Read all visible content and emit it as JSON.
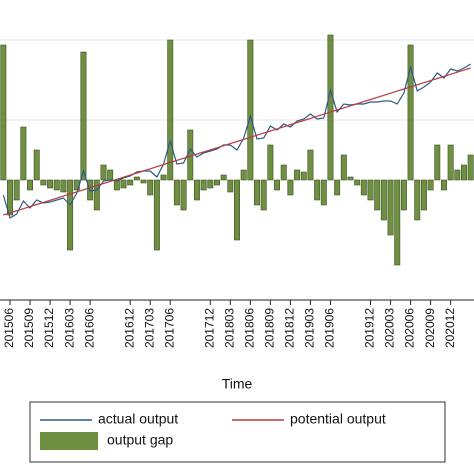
{
  "chart_data": {
    "type": "bar-line",
    "x_label": "Time",
    "categories": [
      null,
      "201506",
      null,
      null,
      "201509",
      null,
      null,
      "201512",
      null,
      null,
      "201603",
      null,
      null,
      "201606",
      null,
      null,
      null,
      null,
      null,
      "201612",
      null,
      null,
      "201703",
      null,
      null,
      "201706",
      null,
      null,
      null,
      null,
      null,
      "201712",
      null,
      null,
      "201803",
      null,
      null,
      "201806",
      null,
      null,
      "201809",
      null,
      null,
      "201812",
      null,
      null,
      "201903",
      null,
      null,
      "201906",
      null,
      null,
      null,
      null,
      null,
      "201912",
      null,
      null,
      "202003",
      null,
      null,
      "202006",
      null,
      null,
      "202009",
      null,
      null,
      "202012",
      null,
      null,
      null
    ],
    "series": [
      {
        "name": "actual output",
        "kind": "line",
        "color": "#2b5a84",
        "values": [
          -1.5,
          -3.8,
          -3.4,
          -2.1,
          -2.8,
          -2.0,
          -2.3,
          -2.2,
          -2.0,
          -1.8,
          -2.5,
          -1.3,
          0.9,
          -1.1,
          -1.0,
          -0.1,
          0.0,
          -0.1,
          0.2,
          0.4,
          0.8,
          0.9,
          0.9,
          0.3,
          1.6,
          3.9,
          1.6,
          1.7,
          3.1,
          2.3,
          2.7,
          2.9,
          3.1,
          3.5,
          3.5,
          3.0,
          4.2,
          6.4,
          4.1,
          4.2,
          5.4,
          5.0,
          5.6,
          5.3,
          5.9,
          6.1,
          6.6,
          6.1,
          6.2,
          9.0,
          6.8,
          7.6,
          7.5,
          7.6,
          7.6,
          7.8,
          7.8,
          7.9,
          7.9,
          7.6,
          8.7,
          11.3,
          8.9,
          9.3,
          9.8,
          10.7,
          10.2,
          11.1,
          10.9,
          11.2,
          11.6
        ]
      },
      {
        "name": "potential output",
        "kind": "line",
        "color": "#b83a3a",
        "values": [
          -3.5,
          -3.29,
          -3.08,
          -2.87,
          -2.66,
          -2.45,
          -2.24,
          -2.03,
          -1.82,
          -1.61,
          -1.4,
          -1.19,
          -0.98,
          -0.77,
          -0.56,
          -0.35,
          -0.14,
          0.07,
          0.28,
          0.49,
          0.7,
          0.91,
          1.12,
          1.33,
          1.54,
          1.75,
          1.96,
          2.17,
          2.38,
          2.59,
          2.8,
          3.01,
          3.22,
          3.43,
          3.64,
          3.85,
          4.06,
          4.27,
          4.48,
          4.69,
          4.9,
          5.11,
          5.32,
          5.53,
          5.74,
          5.95,
          6.16,
          6.37,
          6.58,
          6.79,
          7.0,
          7.21,
          7.42,
          7.63,
          7.84,
          8.05,
          8.26,
          8.47,
          8.68,
          8.89,
          9.1,
          9.31,
          9.52,
          9.73,
          9.94,
          10.15,
          10.36,
          10.57,
          10.78,
          10.99,
          11.2
        ]
      },
      {
        "name": "output gap",
        "kind": "bar",
        "color": "#6f8f43",
        "values": [
          13.5,
          -3.5,
          -2,
          5.3,
          -1,
          3,
          -0.5,
          -0.8,
          -1,
          -1.2,
          -7,
          -1,
          12.8,
          -2,
          -3,
          1.5,
          1,
          -1,
          -0.8,
          -0.5,
          0.3,
          -0.3,
          -1.5,
          -7,
          0.5,
          14,
          -2.5,
          -3,
          5,
          -2,
          -1,
          -0.8,
          -0.5,
          0.5,
          -1.2,
          -6,
          1,
          14,
          -2.5,
          -3,
          3.5,
          -1,
          1.5,
          -1.5,
          1,
          0.8,
          3,
          -2,
          -2.5,
          14.5,
          -1.5,
          2.5,
          0.3,
          -0.5,
          -1.5,
          -2,
          -3,
          -4,
          -5.5,
          -8.5,
          -3,
          13.5,
          -4,
          -3,
          -1,
          3.5,
          -1,
          3.5,
          1,
          1.5,
          2.5
        ]
      }
    ],
    "ylim": [
      -12,
      18
    ],
    "yticks": [
      6,
      14
    ],
    "grid": true
  }
}
